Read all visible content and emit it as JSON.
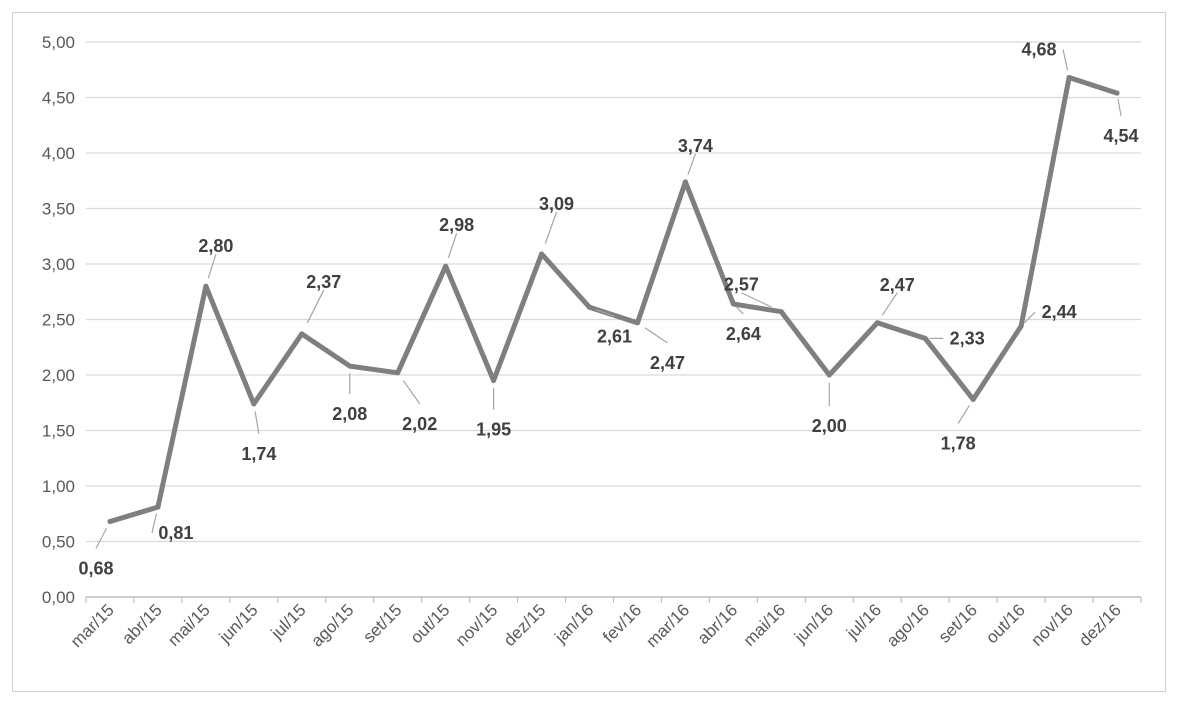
{
  "chart_data": {
    "type": "line",
    "title": "",
    "xlabel": "",
    "ylabel": "",
    "categories": [
      "mar/15",
      "abr/15",
      "mai/15",
      "jun/15",
      "jul/15",
      "ago/15",
      "set/15",
      "out/15",
      "nov/15",
      "dez/15",
      "jan/16",
      "fev/16",
      "mar/16",
      "abr/16",
      "mai/16",
      "jun/16",
      "jul/16",
      "ago/16",
      "set/16",
      "out/16",
      "nov/16",
      "dez/16"
    ],
    "series": [
      {
        "values": [
          0.68,
          0.81,
          2.8,
          1.74,
          2.37,
          2.08,
          2.02,
          2.98,
          1.95,
          3.09,
          2.61,
          2.47,
          3.74,
          2.64,
          2.57,
          2.0,
          2.47,
          2.33,
          1.78,
          2.44,
          4.68,
          4.54
        ],
        "data_labels": [
          "0,68",
          "0,81",
          "2,80",
          "1,74",
          "2,37",
          "2,08",
          "2,02",
          "2,98",
          "1,95",
          "3,09",
          "2,61",
          "2,47",
          "3,74",
          "2,64",
          "2,57",
          "2,00",
          "2,47",
          "2,33",
          "1,78",
          "2,44",
          "4,68",
          "4,54"
        ]
      }
    ],
    "ylim": [
      0,
      5
    ],
    "yticks": [
      0,
      0.5,
      1,
      1.5,
      2,
      2.5,
      3,
      3.5,
      4,
      4.5,
      5
    ],
    "ytick_labels": [
      "0,00",
      "0,50",
      "1,00",
      "1,50",
      "2,00",
      "2,50",
      "3,00",
      "3,50",
      "4,00",
      "4,50",
      "5,00"
    ],
    "grid": true,
    "legend": "none",
    "colors": {
      "line": "#7f7f7f",
      "grid": "#d9d9d9",
      "axis": "#bfbfbf",
      "tick_text": "#595959",
      "label_text": "#404040",
      "leader": "#a6a6a6"
    }
  }
}
